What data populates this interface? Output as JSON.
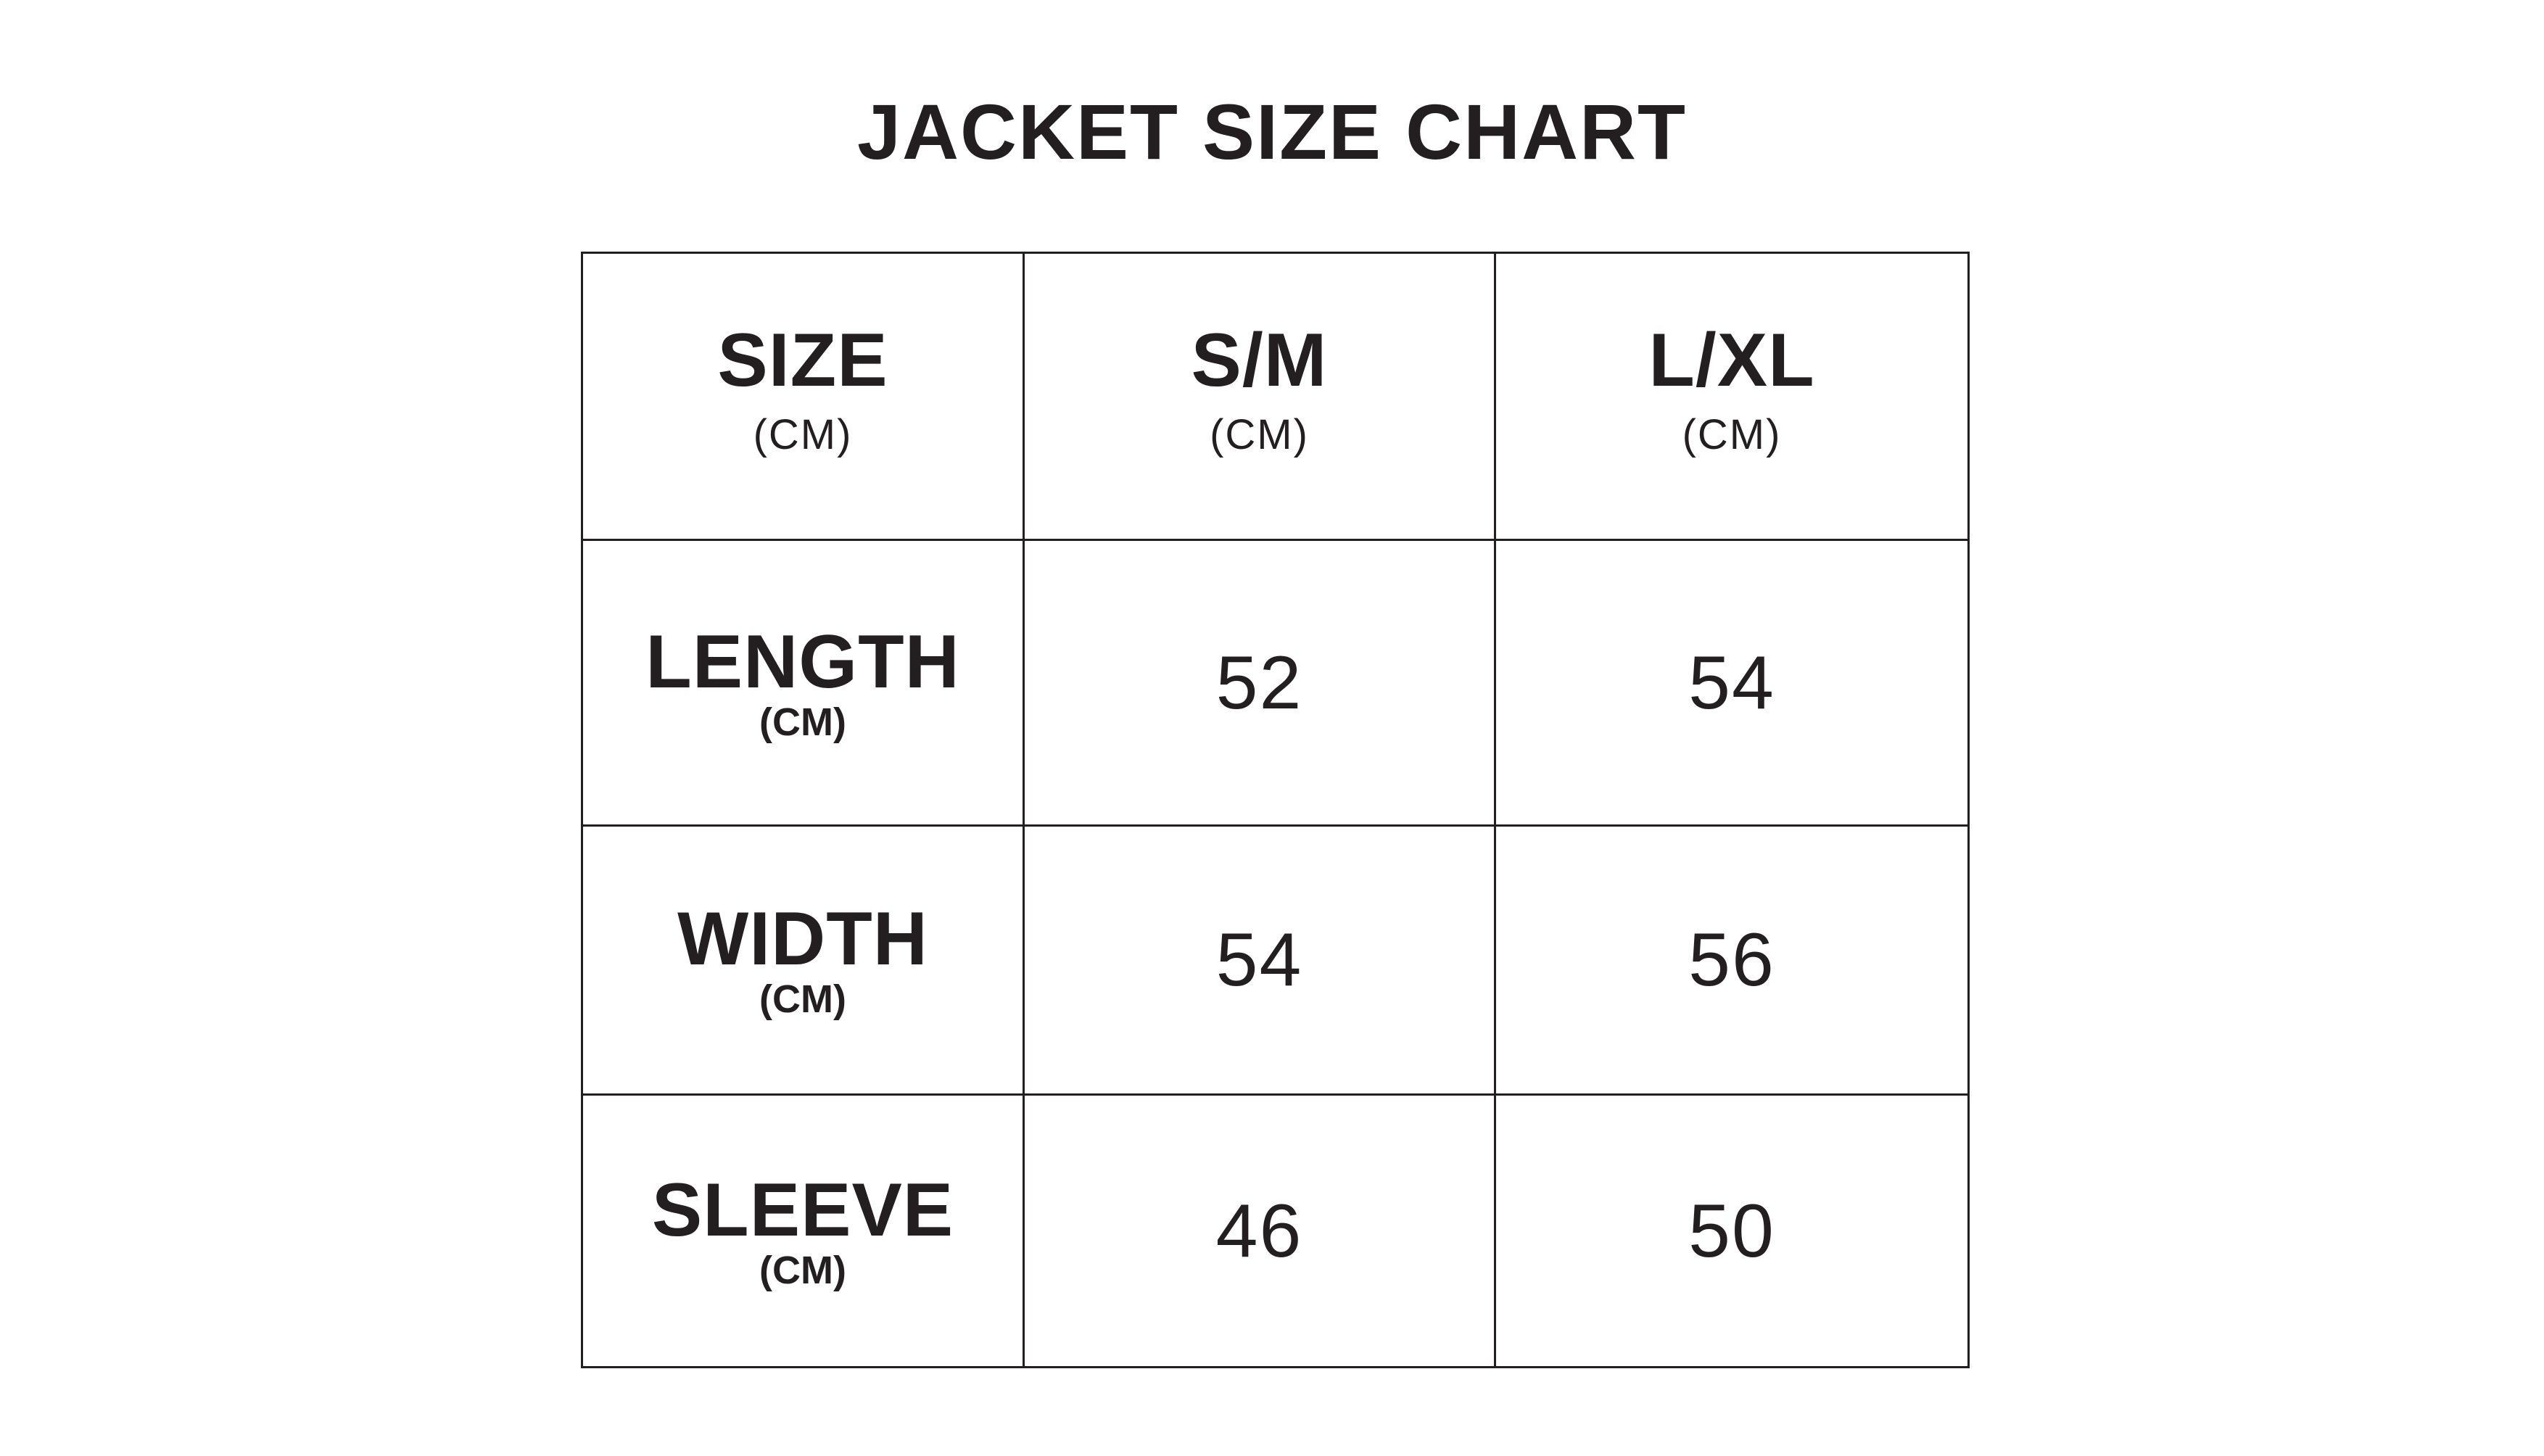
{
  "title": "JACKET SIZE CHART",
  "table": {
    "header": [
      {
        "label": "SIZE",
        "unit": "(CM)"
      },
      {
        "label": "S/M",
        "unit": "(CM)"
      },
      {
        "label": "L/XL",
        "unit": "(CM)"
      }
    ],
    "rows": [
      {
        "label": "LENGTH",
        "unit": "(CM)",
        "values": [
          "52",
          "54"
        ]
      },
      {
        "label": "WIDTH",
        "unit": "(CM)",
        "values": [
          "54",
          "56"
        ]
      },
      {
        "label": "SLEEVE",
        "unit": "(CM)",
        "values": [
          "46",
          "50"
        ]
      }
    ]
  }
}
